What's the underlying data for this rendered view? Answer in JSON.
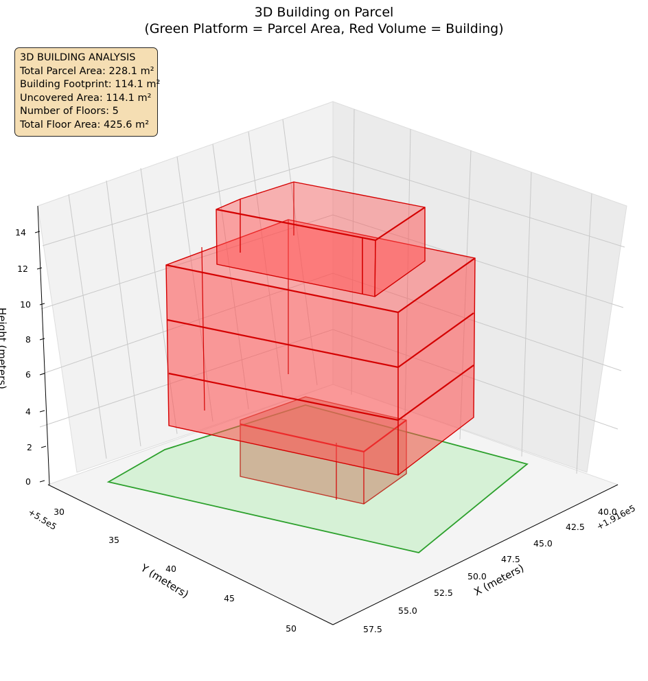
{
  "chart_data": {
    "type": "3d-volume",
    "title_line1": "3D Building on Parcel",
    "title_line2": "(Green Platform = Parcel Area, Red Volume = Building)",
    "xlabel": "X (meters)",
    "ylabel": "Y (meters)",
    "zlabel": "Height (meters)",
    "x_offset_label": "+1.916e5",
    "y_offset_label": "+5.5e5",
    "x_ticks": [
      "40.0",
      "42.5",
      "45.0",
      "47.5",
      "50.0",
      "52.5",
      "55.0",
      "57.5"
    ],
    "y_ticks": [
      "30",
      "35",
      "40",
      "45",
      "50"
    ],
    "z_ticks": [
      "0",
      "2",
      "4",
      "6",
      "8",
      "10",
      "12",
      "14"
    ],
    "zlim": [
      0,
      15
    ],
    "grid": true,
    "legend": "none",
    "info_box": [
      "3D BUILDING ANALYSIS",
      "Total Parcel Area: 228.1 m²",
      "Building Footprint: 114.1 m²",
      "Uncovered Area: 114.1 m²",
      "Number of Floors: 5",
      "Total Floor Area: 425.6 m²"
    ],
    "colors": {
      "parcel_fill": "#d4f0d4",
      "parcel_edge": "#2ca02c",
      "building_fill": "#ff4d4d",
      "building_edge": "#d40000",
      "info_box_bg": "#f5deb3"
    }
  }
}
